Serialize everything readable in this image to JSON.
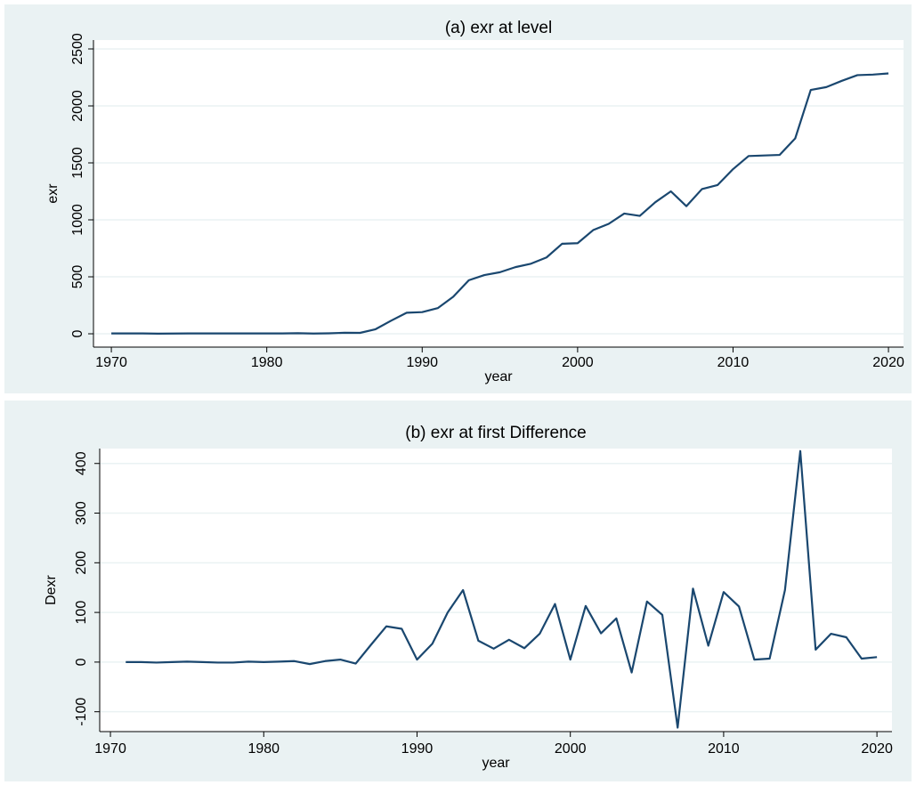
{
  "chart_data": [
    {
      "type": "line",
      "title": "(a) exr at level",
      "x_label": "year",
      "y_label": "exr",
      "x": [
        1970,
        1971,
        1972,
        1973,
        1974,
        1975,
        1976,
        1977,
        1978,
        1979,
        1980,
        1981,
        1982,
        1983,
        1984,
        1985,
        1986,
        1987,
        1988,
        1989,
        1990,
        1991,
        1992,
        1993,
        1994,
        1995,
        1996,
        1997,
        1998,
        1999,
        2000,
        2001,
        2002,
        2003,
        2004,
        2005,
        2006,
        2007,
        2008,
        2009,
        2010,
        2011,
        2012,
        2013,
        2014,
        2015,
        2016,
        2017,
        2018,
        2019,
        2020
      ],
      "values": [
        3,
        3,
        3,
        1,
        2,
        3,
        3,
        3,
        3,
        3,
        3,
        3,
        5,
        2,
        4,
        9,
        8,
        40,
        115,
        185,
        190,
        225,
        325,
        470,
        515,
        540,
        585,
        615,
        670,
        790,
        795,
        910,
        965,
        1055,
        1035,
        1155,
        1250,
        1120,
        1270,
        1305,
        1445,
        1560,
        1565,
        1570,
        1715,
        2140,
        2165,
        2220,
        2270,
        2275,
        2285
      ],
      "color": "#1a476f",
      "xlim": [
        1968.85,
        2020.97
      ],
      "ylim": [
        -117,
        2578
      ],
      "xticks": [
        1970,
        1980,
        1990,
        2000,
        2010,
        2020
      ],
      "yticks": [
        0,
        500,
        1000,
        1500,
        2000,
        2500
      ],
      "grid": true
    },
    {
      "type": "line",
      "title": "(b) exr at first Difference",
      "x_label": "year",
      "y_label": "Dexr",
      "x": [
        1971,
        1972,
        1973,
        1974,
        1975,
        1976,
        1977,
        1978,
        1979,
        1980,
        1981,
        1982,
        1983,
        1984,
        1985,
        1986,
        1987,
        1988,
        1989,
        1990,
        1991,
        1992,
        1993,
        1994,
        1995,
        1996,
        1997,
        1998,
        1999,
        2000,
        2001,
        2002,
        2003,
        2004,
        2005,
        2006,
        2007,
        2008,
        2009,
        2010,
        2011,
        2012,
        2013,
        2014,
        2015,
        2016,
        2017,
        2018,
        2019,
        2020
      ],
      "values": [
        0,
        0,
        -1,
        0,
        1,
        0,
        -1,
        -1,
        1,
        0,
        1,
        2,
        -4,
        2,
        5,
        -3,
        35,
        72,
        67,
        5,
        37,
        100,
        145,
        43,
        27,
        45,
        28,
        57,
        117,
        5,
        113,
        58,
        88,
        -21,
        122,
        95,
        -132,
        148,
        33,
        141,
        112,
        5,
        7,
        145,
        425,
        25,
        57,
        50,
        7,
        10
      ],
      "color": "#1a476f",
      "xlim": [
        1969.3,
        2020.98
      ],
      "ylim": [
        -140,
        430
      ],
      "xticks": [
        1970,
        1980,
        1990,
        2000,
        2010,
        2020
      ],
      "yticks": [
        -100,
        0,
        100,
        200,
        300,
        400
      ],
      "grid": true
    }
  ]
}
